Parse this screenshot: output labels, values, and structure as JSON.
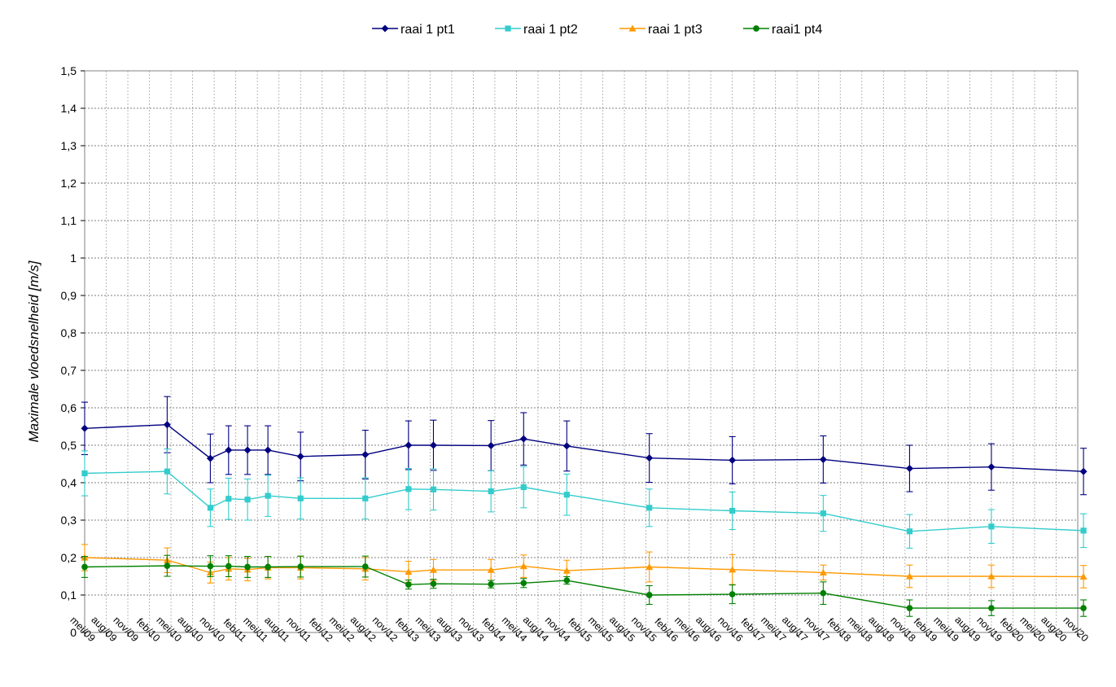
{
  "chart_data": {
    "type": "line",
    "title": "",
    "ylabel": "Maximale vloedsnelheid [m/s]",
    "xlabel": "",
    "ylim": [
      0,
      1.5
    ],
    "y_ticks": [
      "0",
      "0,1",
      "0,2",
      "0,3",
      "0,4",
      "0,5",
      "0,6",
      "0,7",
      "0,8",
      "0,9",
      "1",
      "1,1",
      "1,2",
      "1,3",
      "1,4",
      "1,5"
    ],
    "x_ticks": [
      "mei/09",
      "aug/09",
      "nov/09",
      "feb/10",
      "mei/10",
      "aug/10",
      "nov/10",
      "feb/11",
      "mei/11",
      "aug/11",
      "nov/11",
      "feb/12",
      "mei/12",
      "aug/12",
      "nov/12",
      "feb/13",
      "mei/13",
      "aug/13",
      "nov/13",
      "feb/14",
      "mei/14",
      "aug/14",
      "nov/14",
      "feb/15",
      "mei/15",
      "aug/15",
      "nov/15",
      "feb/16",
      "mei/16",
      "aug/16",
      "nov/16",
      "feb/17",
      "mei/17",
      "aug/17",
      "nov/17",
      "feb/18",
      "mei/18",
      "aug/18",
      "nov/18",
      "feb/19",
      "mei/19",
      "aug/19",
      "nov/19",
      "feb/20",
      "mei/20",
      "aug/20",
      "nov/20"
    ],
    "grid": true,
    "legend_position": "top",
    "series": [
      {
        "name": "raai 1 pt1",
        "color": "#000080",
        "marker": "diamond",
        "points": [
          {
            "x": "2009-05-01",
            "y": 0.545,
            "err": 0.07
          },
          {
            "x": "2010-04-15",
            "y": 0.555,
            "err": 0.075
          },
          {
            "x": "2010-10-15",
            "y": 0.465,
            "err": 0.065
          },
          {
            "x": "2011-01-01",
            "y": 0.487,
            "err": 0.065
          },
          {
            "x": "2011-03-20",
            "y": 0.487,
            "err": 0.065
          },
          {
            "x": "2011-06-15",
            "y": 0.487,
            "err": 0.065
          },
          {
            "x": "2011-11-01",
            "y": 0.47,
            "err": 0.065
          },
          {
            "x": "2012-08-01",
            "y": 0.475,
            "err": 0.065
          },
          {
            "x": "2013-02-01",
            "y": 0.5,
            "err": 0.065
          },
          {
            "x": "2013-05-15",
            "y": 0.5,
            "err": 0.067
          },
          {
            "x": "2014-01-15",
            "y": 0.499,
            "err": 0.067
          },
          {
            "x": "2014-06-01",
            "y": 0.517,
            "err": 0.07
          },
          {
            "x": "2014-12-01",
            "y": 0.498,
            "err": 0.067
          },
          {
            "x": "2015-11-15",
            "y": 0.466,
            "err": 0.065
          },
          {
            "x": "2016-11-01",
            "y": 0.46,
            "err": 0.063
          },
          {
            "x": "2017-11-20",
            "y": 0.462,
            "err": 0.063
          },
          {
            "x": "2018-11-20",
            "y": 0.438,
            "err": 0.062
          },
          {
            "x": "2019-11-01",
            "y": 0.442,
            "err": 0.062
          },
          {
            "x": "2020-11-25",
            "y": 0.43,
            "err": 0.062
          }
        ]
      },
      {
        "name": "raai 1 pt2",
        "color": "#33CCCC",
        "marker": "square",
        "points": [
          {
            "x": "2009-05-01",
            "y": 0.425,
            "err": 0.06
          },
          {
            "x": "2010-04-15",
            "y": 0.43,
            "err": 0.06
          },
          {
            "x": "2010-10-15",
            "y": 0.333,
            "err": 0.05
          },
          {
            "x": "2011-01-01",
            "y": 0.357,
            "err": 0.055
          },
          {
            "x": "2011-03-20",
            "y": 0.355,
            "err": 0.055
          },
          {
            "x": "2011-06-15",
            "y": 0.365,
            "err": 0.055
          },
          {
            "x": "2011-11-01",
            "y": 0.358,
            "err": 0.055
          },
          {
            "x": "2012-08-01",
            "y": 0.358,
            "err": 0.055
          },
          {
            "x": "2013-02-01",
            "y": 0.383,
            "err": 0.055
          },
          {
            "x": "2013-05-15",
            "y": 0.382,
            "err": 0.055
          },
          {
            "x": "2014-01-15",
            "y": 0.377,
            "err": 0.055
          },
          {
            "x": "2014-06-01",
            "y": 0.388,
            "err": 0.055
          },
          {
            "x": "2014-12-01",
            "y": 0.368,
            "err": 0.055
          },
          {
            "x": "2015-11-15",
            "y": 0.333,
            "err": 0.05
          },
          {
            "x": "2016-11-01",
            "y": 0.325,
            "err": 0.05
          },
          {
            "x": "2017-11-20",
            "y": 0.318,
            "err": 0.048
          },
          {
            "x": "2018-11-20",
            "y": 0.27,
            "err": 0.045
          },
          {
            "x": "2019-11-01",
            "y": 0.283,
            "err": 0.045
          },
          {
            "x": "2020-11-25",
            "y": 0.272,
            "err": 0.045
          }
        ]
      },
      {
        "name": "raai 1 pt3",
        "color": "#FF9900",
        "marker": "triangle",
        "points": [
          {
            "x": "2009-05-01",
            "y": 0.2,
            "err": 0.035
          },
          {
            "x": "2010-04-15",
            "y": 0.193,
            "err": 0.033
          },
          {
            "x": "2010-10-15",
            "y": 0.16,
            "err": 0.028
          },
          {
            "x": "2011-01-01",
            "y": 0.17,
            "err": 0.03
          },
          {
            "x": "2011-03-20",
            "y": 0.168,
            "err": 0.03
          },
          {
            "x": "2011-06-15",
            "y": 0.173,
            "err": 0.03
          },
          {
            "x": "2011-11-01",
            "y": 0.173,
            "err": 0.03
          },
          {
            "x": "2012-08-01",
            "y": 0.17,
            "err": 0.03
          },
          {
            "x": "2013-02-01",
            "y": 0.162,
            "err": 0.028
          },
          {
            "x": "2013-05-15",
            "y": 0.167,
            "err": 0.028
          },
          {
            "x": "2014-01-15",
            "y": 0.167,
            "err": 0.028
          },
          {
            "x": "2014-06-01",
            "y": 0.177,
            "err": 0.03
          },
          {
            "x": "2014-12-01",
            "y": 0.165,
            "err": 0.028
          },
          {
            "x": "2015-11-15",
            "y": 0.175,
            "err": 0.04
          },
          {
            "x": "2016-11-01",
            "y": 0.168,
            "err": 0.04
          },
          {
            "x": "2017-11-20",
            "y": 0.16,
            "err": 0.02
          },
          {
            "x": "2018-11-20",
            "y": 0.15,
            "err": 0.03
          },
          {
            "x": "2019-11-01",
            "y": 0.15,
            "err": 0.03
          },
          {
            "x": "2020-11-25",
            "y": 0.149,
            "err": 0.03
          }
        ]
      },
      {
        "name": "raai1 pt4",
        "color": "#008000",
        "marker": "circle",
        "points": [
          {
            "x": "2009-05-01",
            "y": 0.175,
            "err": 0.028
          },
          {
            "x": "2010-04-15",
            "y": 0.178,
            "err": 0.028
          },
          {
            "x": "2010-10-15",
            "y": 0.177,
            "err": 0.028
          },
          {
            "x": "2011-01-01",
            "y": 0.177,
            "err": 0.028
          },
          {
            "x": "2011-03-20",
            "y": 0.175,
            "err": 0.028
          },
          {
            "x": "2011-06-15",
            "y": 0.175,
            "err": 0.028
          },
          {
            "x": "2011-11-01",
            "y": 0.176,
            "err": 0.028
          },
          {
            "x": "2012-08-01",
            "y": 0.176,
            "err": 0.028
          },
          {
            "x": "2013-02-01",
            "y": 0.128,
            "err": 0.012
          },
          {
            "x": "2013-05-15",
            "y": 0.13,
            "err": 0.012
          },
          {
            "x": "2014-01-15",
            "y": 0.129,
            "err": 0.01
          },
          {
            "x": "2014-06-01",
            "y": 0.132,
            "err": 0.012
          },
          {
            "x": "2014-12-01",
            "y": 0.139,
            "err": 0.01
          },
          {
            "x": "2015-11-15",
            "y": 0.1,
            "err": 0.025
          },
          {
            "x": "2016-11-01",
            "y": 0.102,
            "err": 0.025
          },
          {
            "x": "2017-11-20",
            "y": 0.105,
            "err": 0.03
          },
          {
            "x": "2018-11-20",
            "y": 0.065,
            "err": 0.022
          },
          {
            "x": "2019-11-01",
            "y": 0.065,
            "err": 0.02
          },
          {
            "x": "2020-11-25",
            "y": 0.065,
            "err": 0.022
          }
        ]
      }
    ]
  }
}
